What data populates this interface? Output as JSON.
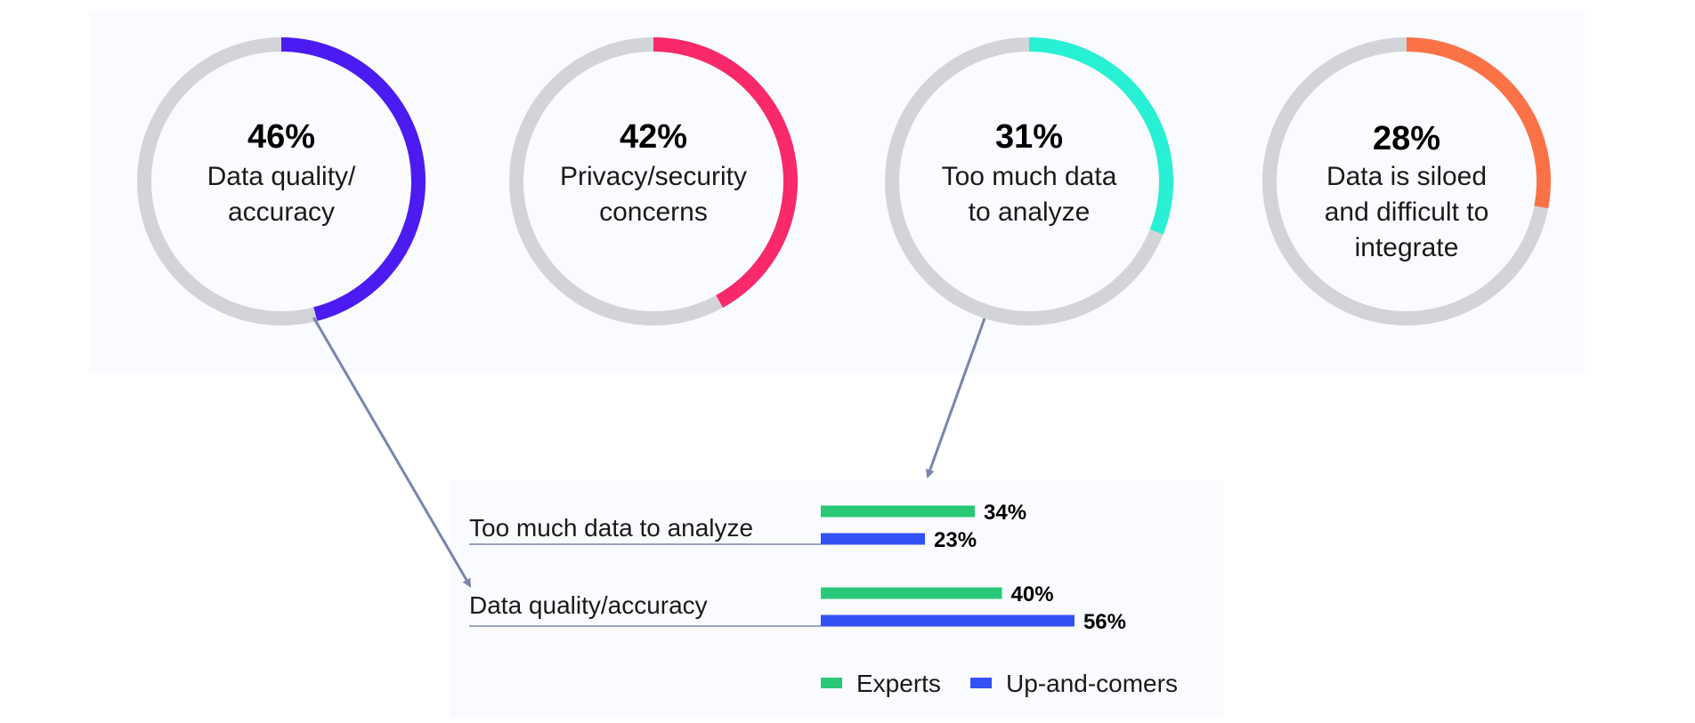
{
  "colors": {
    "track": "#d3d4d8",
    "panel": "#fafbfe",
    "connector": "#7b84ad",
    "label_text": "#1a1a1a",
    "value_text": "#000000"
  },
  "chart_data": [
    {
      "type": "pie",
      "style": "donut",
      "grid": false,
      "slices": [
        {
          "value": 46,
          "percent_label": "46%",
          "label_lines": [
            "Data quality/",
            "accuracy"
          ],
          "color": "#4b1bf2"
        },
        {
          "value": 42,
          "percent_label": "42%",
          "label_lines": [
            "Privacy/security",
            "concerns"
          ],
          "color": "#f9296b"
        },
        {
          "value": 31,
          "percent_label": "31%",
          "label_lines": [
            "Too much data",
            "to analyze"
          ],
          "color": "#27f0d4"
        },
        {
          "value": 28,
          "percent_label": "28%",
          "label_lines": [
            "Data is siloed",
            "and difficult to",
            "integrate"
          ],
          "color": "#fc7247"
        }
      ]
    },
    {
      "type": "bar",
      "orientation": "horizontal",
      "grid": false,
      "legend_position": "bottom",
      "categories": [
        "Too much data to analyze",
        "Data quality/accuracy"
      ],
      "series": [
        {
          "name": "Experts",
          "values": [
            34,
            40
          ],
          "labels": [
            "34%",
            "40%"
          ],
          "color": "#28c878"
        },
        {
          "name": "Up-and-comers",
          "values": [
            23,
            56
          ],
          "labels": [
            "23%",
            "56%"
          ],
          "color": "#3351f4"
        }
      ]
    }
  ]
}
